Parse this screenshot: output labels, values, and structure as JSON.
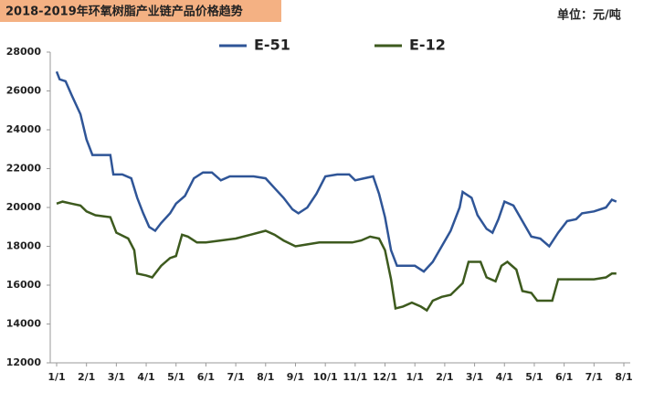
{
  "chart_data": {
    "type": "line",
    "title": "2018-2019年环氧树脂产业链产品价格趋势",
    "unit": "单位：元/吨",
    "xlim": [
      0,
      19
    ],
    "xticks": [
      {
        "value": 0,
        "label": "1/1"
      },
      {
        "value": 1,
        "label": "2/1"
      },
      {
        "value": 2,
        "label": "3/1"
      },
      {
        "value": 3,
        "label": "4/1"
      },
      {
        "value": 4,
        "label": "5/1"
      },
      {
        "value": 5,
        "label": "6/1"
      },
      {
        "value": 6,
        "label": "7/1"
      },
      {
        "value": 7,
        "label": "8/1"
      },
      {
        "value": 8,
        "label": "9/1"
      },
      {
        "value": 9,
        "label": "10/1"
      },
      {
        "value": 10,
        "label": "11/1"
      },
      {
        "value": 11,
        "label": "12/1"
      },
      {
        "value": 12,
        "label": "1/1"
      },
      {
        "value": 13,
        "label": "2/1"
      },
      {
        "value": 14,
        "label": "3/1"
      },
      {
        "value": 15,
        "label": "4/1"
      },
      {
        "value": 16,
        "label": "5/1"
      },
      {
        "value": 17,
        "label": "6/1"
      },
      {
        "value": 18,
        "label": "7/1"
      },
      {
        "value": 19,
        "label": "8/1"
      }
    ],
    "ylim": [
      12000,
      28000
    ],
    "yticks": [
      12000,
      14000,
      16000,
      18000,
      20000,
      22000,
      24000,
      26000,
      28000
    ],
    "series": [
      {
        "name": "E-51",
        "color": "#2f5597",
        "x": [
          0,
          0.1,
          0.3,
          0.5,
          0.8,
          1.0,
          1.2,
          1.5,
          1.8,
          1.9,
          2.2,
          2.5,
          2.7,
          2.9,
          3.1,
          3.3,
          3.5,
          3.8,
          4.0,
          4.3,
          4.6,
          4.9,
          5.2,
          5.5,
          5.8,
          6.2,
          6.6,
          7.0,
          7.3,
          7.6,
          7.9,
          8.1,
          8.4,
          8.7,
          9.0,
          9.4,
          9.8,
          10.0,
          10.3,
          10.6,
          10.8,
          11.0,
          11.2,
          11.4,
          11.7,
          12.0,
          12.3,
          12.6,
          12.9,
          13.2,
          13.5,
          13.6,
          13.9,
          14.1,
          14.4,
          14.6,
          14.8,
          15.0,
          15.3,
          15.6,
          15.9,
          16.2,
          16.5,
          16.8,
          17.1,
          17.4,
          17.6,
          18.0,
          18.4,
          18.6,
          18.75
        ],
        "values": [
          27000,
          26600,
          26500,
          25800,
          24800,
          23500,
          22700,
          22700,
          22700,
          21700,
          21700,
          21500,
          20500,
          19700,
          19000,
          18800,
          19200,
          19700,
          20200,
          20600,
          21500,
          21800,
          21800,
          21400,
          21600,
          21600,
          21600,
          21500,
          21000,
          20500,
          19900,
          19700,
          20000,
          20700,
          21600,
          21700,
          21700,
          21400,
          21500,
          21600,
          20700,
          19500,
          17800,
          17000,
          17000,
          17000,
          16700,
          17200,
          18000,
          18800,
          20000,
          20800,
          20500,
          19600,
          18900,
          18700,
          19400,
          20300,
          20100,
          19300,
          18500,
          18400,
          18000,
          18700,
          19300,
          19400,
          19700,
          19800,
          20000,
          20400,
          20300
        ]
      },
      {
        "name": "E-12",
        "color": "#3d5a1e",
        "x": [
          0,
          0.2,
          0.5,
          0.8,
          1.0,
          1.3,
          1.8,
          2.0,
          2.4,
          2.6,
          2.7,
          3.0,
          3.2,
          3.5,
          3.8,
          4.0,
          4.2,
          4.4,
          4.7,
          5.0,
          5.5,
          6.0,
          6.5,
          7.0,
          7.3,
          7.6,
          8.0,
          8.4,
          8.8,
          9.3,
          9.6,
          9.9,
          10.2,
          10.5,
          10.8,
          11.0,
          11.2,
          11.35,
          11.6,
          11.9,
          12.2,
          12.4,
          12.6,
          12.9,
          13.2,
          13.6,
          13.8,
          14.2,
          14.4,
          14.7,
          14.9,
          15.1,
          15.4,
          15.6,
          15.9,
          16.1,
          16.6,
          16.8,
          17.4,
          18.0,
          18.4,
          18.6,
          18.75
        ],
        "values": [
          20200,
          20300,
          20200,
          20100,
          19800,
          19600,
          19500,
          18700,
          18400,
          17800,
          16600,
          16500,
          16400,
          17000,
          17400,
          17500,
          18600,
          18500,
          18200,
          18200,
          18300,
          18400,
          18600,
          18800,
          18600,
          18300,
          18000,
          18100,
          18200,
          18200,
          18200,
          18200,
          18300,
          18500,
          18400,
          17800,
          16300,
          14800,
          14900,
          15100,
          14900,
          14700,
          15200,
          15400,
          15500,
          16100,
          17200,
          17200,
          16400,
          16200,
          17000,
          17200,
          16800,
          15700,
          15600,
          15200,
          15200,
          16300,
          16300,
          16300,
          16400,
          16600,
          16600
        ]
      }
    ]
  }
}
